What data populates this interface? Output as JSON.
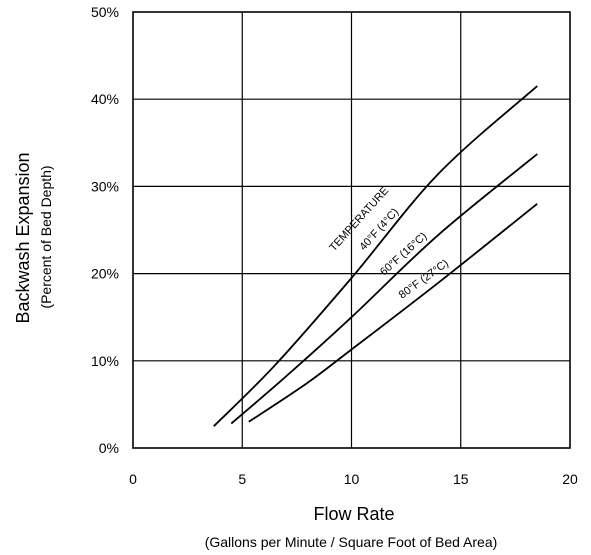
{
  "chart_data": {
    "type": "line",
    "xlabel": "Flow Rate",
    "xlabel_sub": "(Gallons per Minute / Square Foot of Bed Area)",
    "ylabel": "Backwash Expansion",
    "ylabel_sub": "(Percent of Bed Depth)",
    "xlim": [
      0,
      20
    ],
    "ylim": [
      0,
      50
    ],
    "x_ticks": [
      0,
      5,
      10,
      15,
      20
    ],
    "x_tick_labels": [
      "0",
      "5",
      "10",
      "15",
      "20"
    ],
    "y_ticks": [
      0,
      10,
      20,
      30,
      40,
      50
    ],
    "y_tick_labels": [
      "0%",
      "10%",
      "20%",
      "30%",
      "40%",
      "50%"
    ],
    "grid": true,
    "annotation": "TEMPERATURE",
    "series": [
      {
        "name": "40°F (4°C)",
        "x": [
          3.7,
          6.5,
          10,
          14,
          18.5
        ],
        "y": [
          2.5,
          9.5,
          19.5,
          31.5,
          41.5
        ]
      },
      {
        "name": "60°F (16°C)",
        "x": [
          4.5,
          7,
          10,
          14,
          18.5
        ],
        "y": [
          2.8,
          8.2,
          15.0,
          24.5,
          33.7
        ]
      },
      {
        "name": "80°F (27°C)",
        "x": [
          5.3,
          8,
          10,
          14,
          18.5
        ],
        "y": [
          3.0,
          7.5,
          11.3,
          19.0,
          28.0
        ]
      }
    ]
  }
}
